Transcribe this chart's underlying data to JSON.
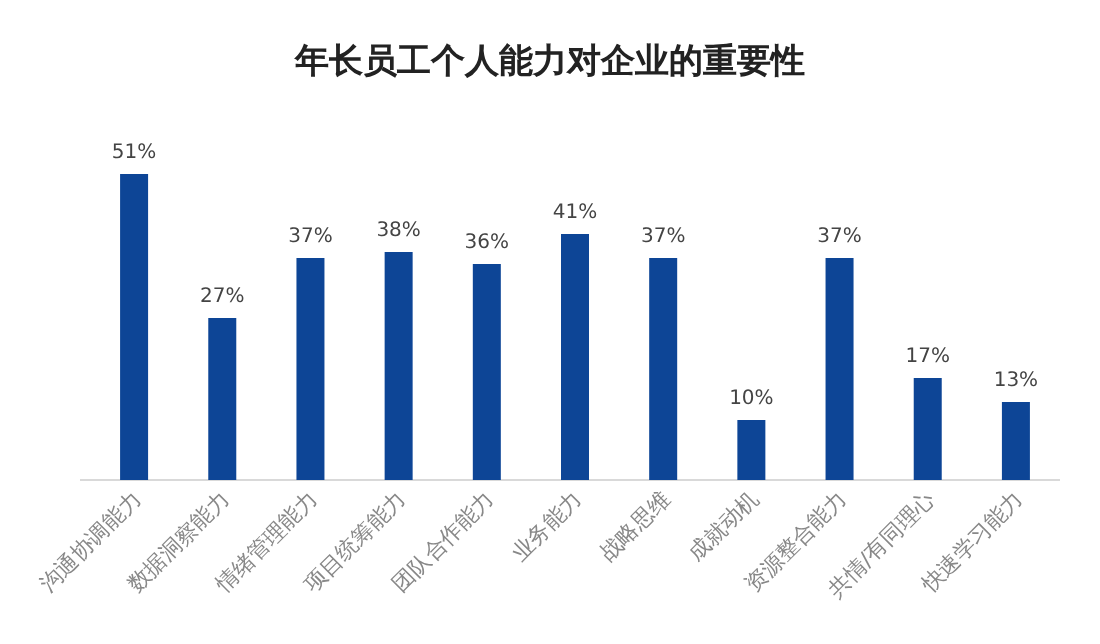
{
  "chart_data": {
    "type": "bar",
    "title": "年长员工个人能力对企业的重要性",
    "categories": [
      "沟通协调能力",
      "数据洞察能力",
      "情绪管理能力",
      "项目统筹能力",
      "团队合作能力",
      "业务能力",
      "战略思维",
      "成就动机",
      "资源整合能力",
      "共情/有同理心",
      "快速学习能力"
    ],
    "values": [
      51,
      27,
      37,
      38,
      36,
      41,
      37,
      10,
      37,
      17,
      13
    ],
    "value_labels": [
      "51%",
      "27%",
      "37%",
      "38%",
      "36%",
      "41%",
      "37%",
      "10%",
      "37%",
      "17%",
      "13%"
    ],
    "color": "#0d4596"
  }
}
